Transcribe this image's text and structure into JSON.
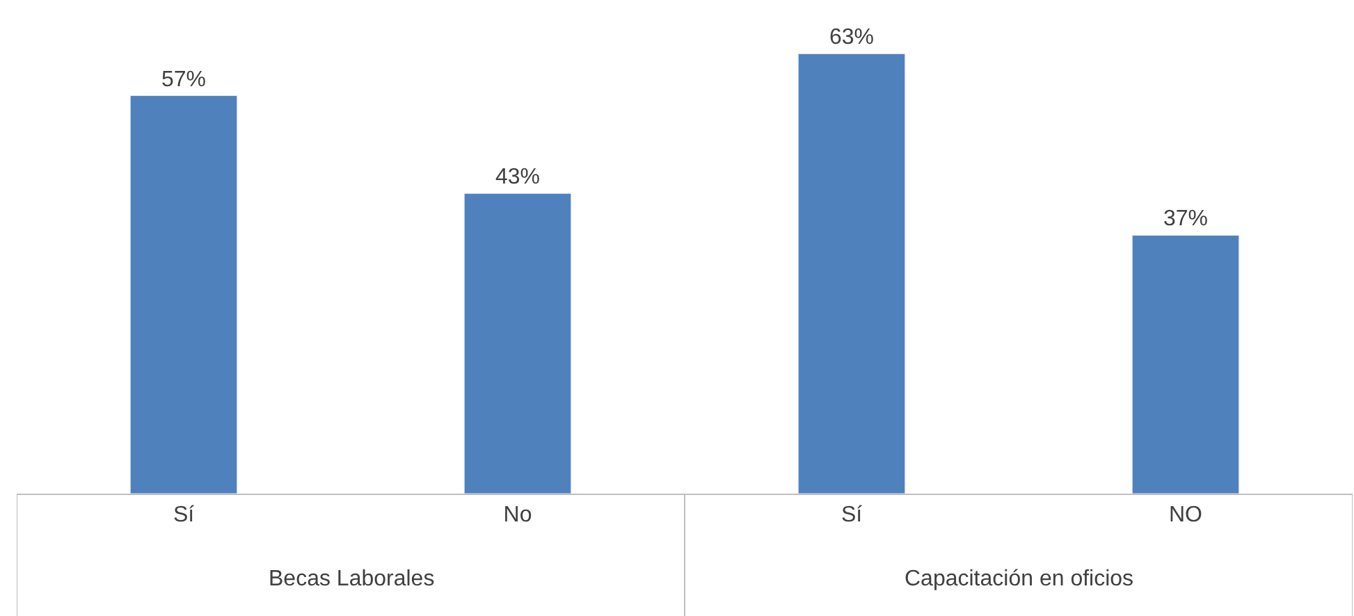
{
  "chart_data": {
    "type": "bar",
    "categories": [
      "Sí",
      "No",
      "Sí",
      "NO"
    ],
    "values": [
      57,
      43,
      63,
      37
    ],
    "value_labels": [
      "57%",
      "43%",
      "63%",
      "37%"
    ],
    "color": "#4f81bd",
    "annotations": [
      "Becas Laborales",
      "Capacitación en oficios"
    ]
  }
}
